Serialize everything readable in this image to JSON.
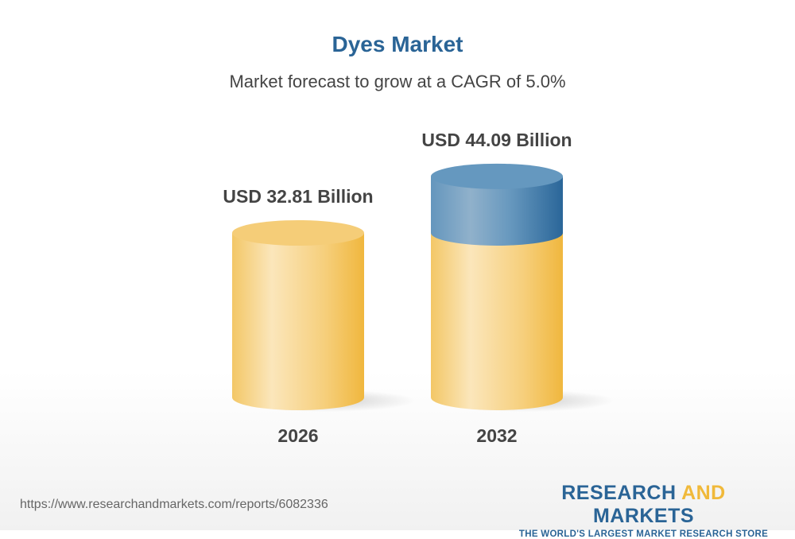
{
  "title": "Dyes Market",
  "subtitle": "Market forecast to grow at a CAGR of 5.0%",
  "chart_data": {
    "type": "bar",
    "style": "3d-cylinder",
    "categories": [
      "2026",
      "2032"
    ],
    "values": [
      32.81,
      44.09
    ],
    "data_labels": [
      "USD 32.81 Billion",
      "USD 44.09 Billion"
    ],
    "unit": "USD Billion",
    "colors": {
      "base": "#f2bd4a",
      "growth": "#2a6496"
    }
  },
  "footer": {
    "url": "https://www.researchandmarkets.com/reports/6082336",
    "logo_part1": "RESEARCH ",
    "logo_part2": "AND",
    "logo_part3": " MARKETS",
    "tagline": "THE WORLD'S LARGEST MARKET RESEARCH STORE"
  }
}
